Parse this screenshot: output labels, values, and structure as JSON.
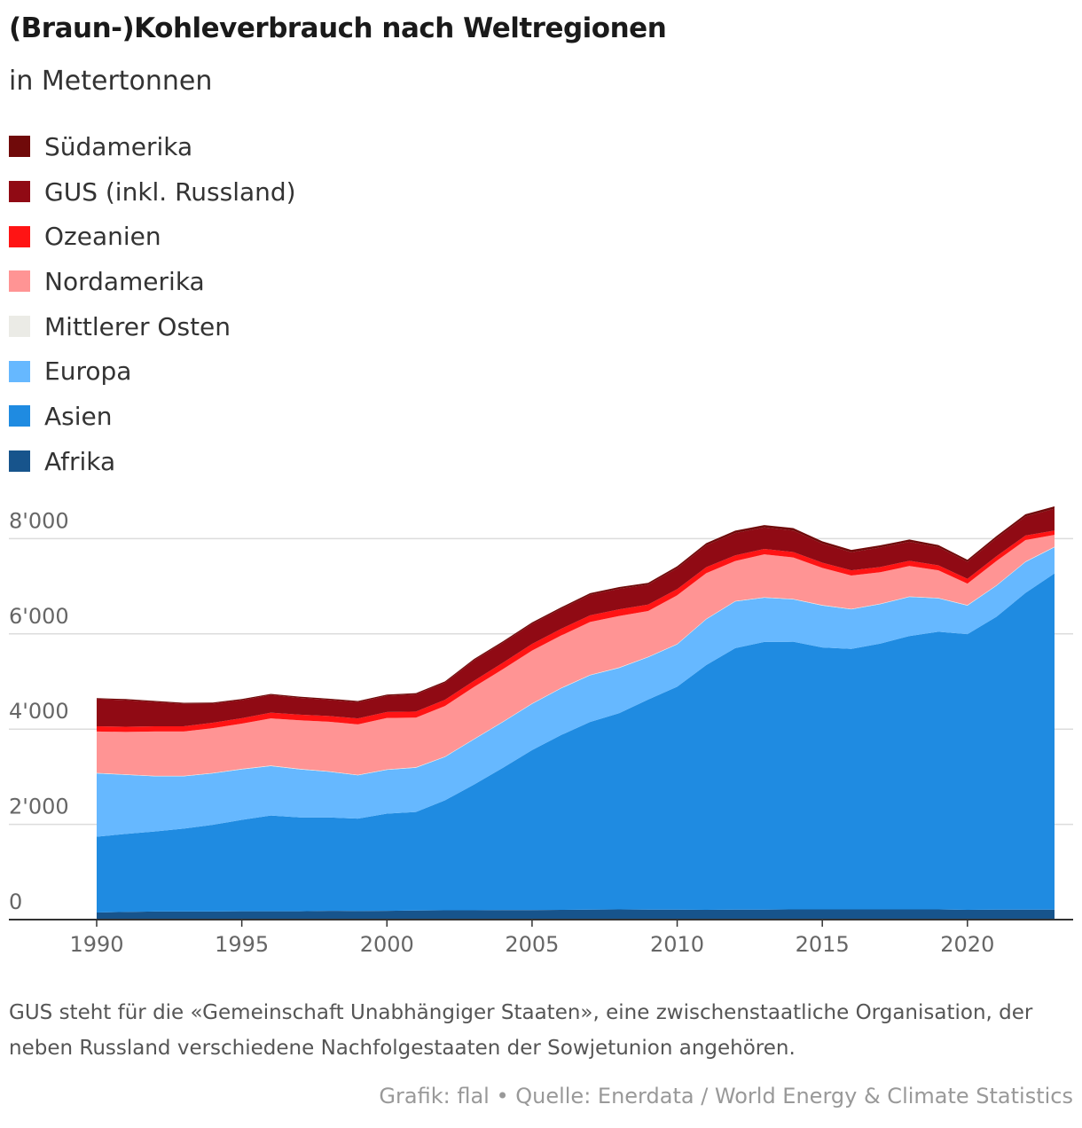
{
  "colors": {
    "Afrika": "#17548c",
    "Asien": "#1f8be1",
    "Europa": "#66b8ff",
    "Mittlerer Osten": "#ebebe6",
    "Nordamerika": "#ff9494",
    "Ozeanien": "#ff1414",
    "GUS": "#900a14",
    "Südamerika": "#700a0a",
    "grid": "#dcdcdc",
    "axis": "#333333"
  },
  "title": "(Braun-)Kohleverbrauch nach Weltregionen",
  "subtitle": "in Metertonnen",
  "legend": [
    {
      "label": "Südamerika",
      "color": "#700a0a"
    },
    {
      "label": "GUS (inkl. Russland)",
      "color": "#900a14"
    },
    {
      "label": "Ozeanien",
      "color": "#ff1414"
    },
    {
      "label": "Nordamerika",
      "color": "#ff9494"
    },
    {
      "label": "Mittlerer Osten",
      "color": "#ebebe6"
    },
    {
      "label": "Europa",
      "color": "#66b8ff"
    },
    {
      "label": "Asien",
      "color": "#1f8be1"
    },
    {
      "label": "Afrika",
      "color": "#17548c"
    }
  ],
  "chart_data": {
    "type": "area",
    "stacked": true,
    "title": "(Braun-)Kohleverbrauch nach Weltregionen",
    "subtitle": "in Metertonnen",
    "xlabel": "",
    "ylabel": "",
    "x": [
      1990,
      1991,
      1992,
      1993,
      1994,
      1995,
      1996,
      1997,
      1998,
      1999,
      2000,
      2001,
      2002,
      2003,
      2004,
      2005,
      2006,
      2007,
      2008,
      2009,
      2010,
      2011,
      2012,
      2013,
      2014,
      2015,
      2016,
      2017,
      2018,
      2019,
      2020,
      2021,
      2022,
      2023
    ],
    "ylim": [
      0,
      8800
    ],
    "xlim": [
      1990,
      2023
    ],
    "yticks": [
      0,
      2000,
      4000,
      6000,
      8000
    ],
    "ytick_labels": [
      "0",
      "2'000",
      "4'000",
      "6'000",
      "8'000"
    ],
    "xticks": [
      1990,
      1995,
      2000,
      2005,
      2010,
      2015,
      2020
    ],
    "xtick_labels": [
      "1990",
      "1995",
      "2000",
      "2005",
      "2010",
      "2015",
      "2020"
    ],
    "grid": true,
    "series": [
      {
        "name": "Afrika",
        "values": [
          150,
          160,
          170,
          170,
          170,
          175,
          175,
          175,
          185,
          180,
          185,
          190,
          195,
          195,
          200,
          200,
          205,
          210,
          215,
          210,
          210,
          205,
          210,
          210,
          215,
          215,
          215,
          215,
          215,
          215,
          205,
          210,
          210,
          210
        ]
      },
      {
        "name": "Asien",
        "values": [
          1590,
          1640,
          1680,
          1740,
          1820,
          1920,
          2010,
          1970,
          1960,
          1940,
          2040,
          2070,
          2310,
          2640,
          2990,
          3360,
          3670,
          3940,
          4120,
          4410,
          4680,
          5140,
          5490,
          5620,
          5620,
          5500,
          5470,
          5580,
          5740,
          5830,
          5790,
          6150,
          6650,
          7060
        ]
      },
      {
        "name": "Europa",
        "values": [
          1330,
          1240,
          1160,
          1100,
          1080,
          1060,
          1040,
          1010,
          960,
          910,
          920,
          930,
          910,
          950,
          960,
          970,
          980,
          980,
          950,
          890,
          890,
          960,
          980,
          930,
          890,
          880,
          830,
          830,
          820,
          700,
          600,
          650,
          650,
          550
        ]
      },
      {
        "name": "Mittlerer Osten",
        "values": [
          10,
          10,
          10,
          10,
          10,
          10,
          10,
          10,
          10,
          10,
          10,
          10,
          10,
          10,
          10,
          10,
          10,
          10,
          10,
          10,
          10,
          10,
          10,
          10,
          10,
          10,
          10,
          10,
          10,
          10,
          10,
          10,
          10,
          10
        ]
      },
      {
        "name": "Nordamerika",
        "values": [
          870,
          890,
          930,
          930,
          940,
          950,
          990,
          1020,
          1040,
          1060,
          1080,
          1040,
          1060,
          1090,
          1100,
          1110,
          1100,
          1110,
          1080,
          960,
          1020,
          960,
          840,
          900,
          870,
          780,
          700,
          660,
          640,
          580,
          450,
          510,
          450,
          250
        ]
      },
      {
        "name": "Ozeanien",
        "values": [
          110,
          110,
          110,
          110,
          115,
          115,
          120,
          120,
          120,
          125,
          125,
          130,
          130,
          130,
          135,
          140,
          140,
          140,
          140,
          135,
          130,
          125,
          120,
          115,
          115,
          110,
          110,
          110,
          110,
          105,
          100,
          100,
          95,
          90
        ]
      },
      {
        "name": "GUS (inkl. Russland)",
        "values": [
          570,
          560,
          510,
          470,
          400,
          380,
          370,
          350,
          340,
          340,
          340,
          360,
          360,
          430,
          420,
          420,
          420,
          430,
          430,
          420,
          440,
          460,
          470,
          450,
          450,
          400,
          380,
          410,
          400,
          380,
          360,
          380,
          400,
          460
        ]
      },
      {
        "name": "Südamerika",
        "values": [
          20,
          22,
          22,
          22,
          23,
          23,
          24,
          25,
          25,
          25,
          25,
          26,
          27,
          28,
          30,
          30,
          32,
          35,
          38,
          36,
          40,
          45,
          48,
          50,
          52,
          50,
          48,
          46,
          46,
          45,
          42,
          45,
          47,
          48
        ]
      }
    ]
  },
  "note": "GUS steht für die «Gemeinschaft Unabhängiger Staaten», eine zwischenstaatliche Organisation, der neben Russland verschiedene Nachfolgestaaten der Sowjetunion angehören.",
  "source": "Grafik: flal • Quelle: Enerdata / World Energy & Climate Statistics"
}
